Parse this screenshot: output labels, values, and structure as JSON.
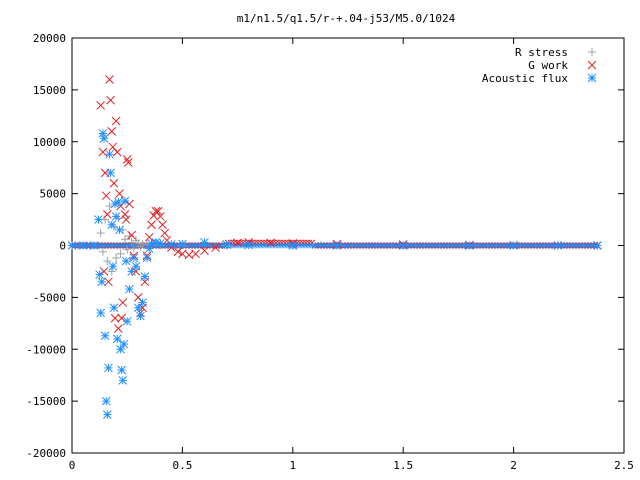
{
  "chart_data": {
    "type": "scatter",
    "title": "m1/n1.5/q1.5/r-+.04-j53/M5.0/1024",
    "xlabel": "",
    "ylabel": "",
    "xlim": [
      0,
      2.5
    ],
    "ylim": [
      -20000,
      20000
    ],
    "x_ticks": [
      0,
      0.5,
      1,
      1.5,
      2,
      2.5
    ],
    "y_ticks": [
      -20000,
      -15000,
      -10000,
      -5000,
      0,
      5000,
      10000,
      15000,
      20000
    ],
    "x_tick_labels": [
      "0",
      "0.5",
      "1",
      "1.5",
      "2",
      "2.5"
    ],
    "y_tick_labels": [
      "-20000",
      "-15000",
      "-10000",
      "-5000",
      "0",
      "5000",
      "10000",
      "15000",
      "20000"
    ],
    "grid": false,
    "legend_position": "top-right",
    "colors": {
      "r_stress": "#a0a0a0",
      "g_work": "#e02020",
      "acoustic_flux": "#1e90ff"
    },
    "series": [
      {
        "name": "R stress",
        "marker": "plus",
        "color": "#a0a0a0",
        "points": [
          [
            0.13,
            1200
          ],
          [
            0.14,
            -600
          ],
          [
            0.15,
            2500
          ],
          [
            0.16,
            -1500
          ],
          [
            0.17,
            3800
          ],
          [
            0.18,
            -2500
          ],
          [
            0.19,
            1800
          ],
          [
            0.2,
            -1200
          ],
          [
            0.21,
            2600
          ],
          [
            0.22,
            -800
          ],
          [
            0.23,
            1500
          ],
          [
            0.24,
            600
          ],
          [
            0.25,
            -400
          ],
          [
            0.26,
            900
          ],
          [
            0.27,
            300
          ],
          [
            0.28,
            -300
          ],
          [
            0.29,
            500
          ],
          [
            0.3,
            200
          ],
          [
            0.31,
            -100
          ],
          [
            0.32,
            150
          ],
          [
            0.34,
            100
          ],
          [
            0.36,
            60
          ],
          [
            0.4,
            30
          ],
          [
            0.5,
            10
          ],
          [
            0.7,
            5
          ],
          [
            1.0,
            0
          ],
          [
            1.5,
            0
          ],
          [
            2.0,
            0
          ],
          [
            2.38,
            0
          ]
        ]
      },
      {
        "name": "G work",
        "marker": "cross",
        "color": "#e02020",
        "points": [
          [
            0.13,
            13500
          ],
          [
            0.14,
            9000
          ],
          [
            0.145,
            -2500
          ],
          [
            0.15,
            7000
          ],
          [
            0.155,
            4800
          ],
          [
            0.16,
            3000
          ],
          [
            0.165,
            -3500
          ],
          [
            0.17,
            16000
          ],
          [
            0.175,
            14000
          ],
          [
            0.18,
            11000
          ],
          [
            0.185,
            9500
          ],
          [
            0.19,
            6000
          ],
          [
            0.195,
            -7000
          ],
          [
            0.2,
            12000
          ],
          [
            0.205,
            9000
          ],
          [
            0.21,
            -8000
          ],
          [
            0.215,
            5000
          ],
          [
            0.22,
            3800
          ],
          [
            0.225,
            -7000
          ],
          [
            0.23,
            -5500
          ],
          [
            0.24,
            3000
          ],
          [
            0.245,
            2500
          ],
          [
            0.25,
            8300
          ],
          [
            0.255,
            8000
          ],
          [
            0.26,
            4000
          ],
          [
            0.27,
            1000
          ],
          [
            0.28,
            -1000
          ],
          [
            0.29,
            -2500
          ],
          [
            0.3,
            -5000
          ],
          [
            0.31,
            -6500
          ],
          [
            0.32,
            -6000
          ],
          [
            0.33,
            -3500
          ],
          [
            0.34,
            -1000
          ],
          [
            0.35,
            800
          ],
          [
            0.36,
            2000
          ],
          [
            0.37,
            2900
          ],
          [
            0.38,
            3300
          ],
          [
            0.39,
            3300
          ],
          [
            0.4,
            2800
          ],
          [
            0.41,
            2000
          ],
          [
            0.42,
            1200
          ],
          [
            0.43,
            500
          ],
          [
            0.45,
            -200
          ],
          [
            0.48,
            -600
          ],
          [
            0.5,
            -800
          ],
          [
            0.53,
            -900
          ],
          [
            0.56,
            -800
          ],
          [
            0.6,
            -500
          ],
          [
            0.65,
            -200
          ],
          [
            0.7,
            100
          ],
          [
            0.75,
            250
          ],
          [
            0.8,
            300
          ],
          [
            0.9,
            250
          ],
          [
            1.0,
            200
          ],
          [
            1.2,
            150
          ],
          [
            1.5,
            100
          ],
          [
            1.8,
            50
          ],
          [
            2.0,
            30
          ],
          [
            2.2,
            20
          ],
          [
            2.38,
            10
          ]
        ]
      },
      {
        "name": "Acoustic flux",
        "marker": "star",
        "color": "#1e90ff",
        "points": [
          [
            0.0,
            0
          ],
          [
            0.05,
            0
          ],
          [
            0.1,
            0
          ],
          [
            0.12,
            2500
          ],
          [
            0.125,
            -2800
          ],
          [
            0.13,
            -6500
          ],
          [
            0.135,
            -3500
          ],
          [
            0.14,
            10800
          ],
          [
            0.145,
            10300
          ],
          [
            0.15,
            -8700
          ],
          [
            0.155,
            -15000
          ],
          [
            0.16,
            -16300
          ],
          [
            0.165,
            -11800
          ],
          [
            0.17,
            8800
          ],
          [
            0.175,
            7000
          ],
          [
            0.18,
            2000
          ],
          [
            0.185,
            -2000
          ],
          [
            0.19,
            -6000
          ],
          [
            0.195,
            4000
          ],
          [
            0.2,
            2800
          ],
          [
            0.205,
            -9000
          ],
          [
            0.21,
            4200
          ],
          [
            0.215,
            1500
          ],
          [
            0.22,
            -10000
          ],
          [
            0.225,
            -12000
          ],
          [
            0.23,
            -13000
          ],
          [
            0.235,
            -9500
          ],
          [
            0.24,
            4300
          ],
          [
            0.245,
            -1500
          ],
          [
            0.25,
            -7300
          ],
          [
            0.26,
            -4200
          ],
          [
            0.27,
            -2500
          ],
          [
            0.28,
            -1200
          ],
          [
            0.29,
            -2000
          ],
          [
            0.3,
            -6000
          ],
          [
            0.31,
            -6800
          ],
          [
            0.32,
            -5500
          ],
          [
            0.33,
            -3000
          ],
          [
            0.34,
            -1200
          ],
          [
            0.35,
            -300
          ],
          [
            0.36,
            200
          ],
          [
            0.38,
            300
          ],
          [
            0.4,
            200
          ],
          [
            0.45,
            100
          ],
          [
            0.5,
            150
          ],
          [
            0.6,
            300
          ],
          [
            0.7,
            100
          ],
          [
            0.8,
            50
          ],
          [
            1.0,
            0
          ],
          [
            1.2,
            0
          ],
          [
            1.5,
            0
          ],
          [
            1.8,
            0
          ],
          [
            2.0,
            0
          ],
          [
            2.2,
            0
          ],
          [
            2.38,
            0
          ]
        ]
      }
    ]
  }
}
